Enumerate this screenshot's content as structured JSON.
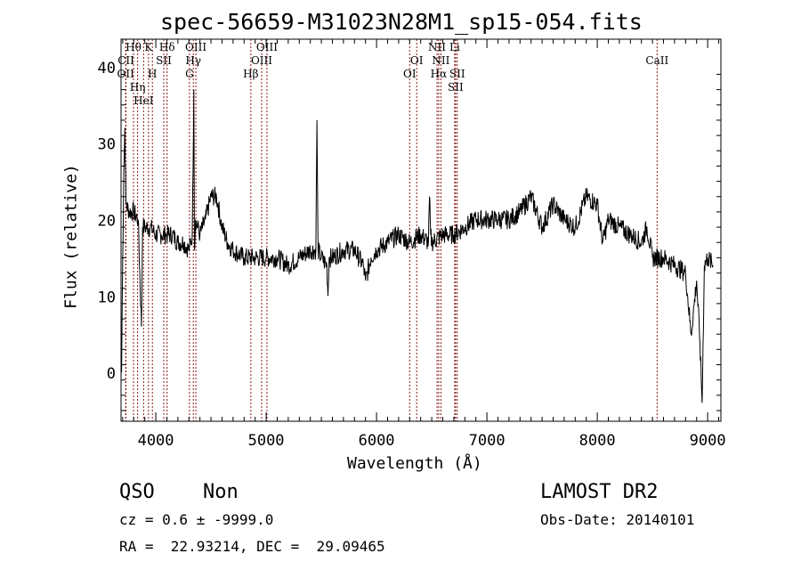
{
  "chart_data": {
    "type": "line",
    "title": "spec-56659-M31023N28M1_sp15-054.fits",
    "xlabel": "Wavelength (Å)",
    "ylabel": "Flux (relative)",
    "xlim": [
      3685,
      9120
    ],
    "ylim": [
      -6.4,
      43.6
    ],
    "xticks": [
      4000,
      5000,
      6000,
      7000,
      8000,
      9000
    ],
    "yticks": [
      0,
      10,
      20,
      30,
      40
    ],
    "series": [
      {
        "name": "spectrum",
        "x": [
          3690,
          3700,
          3710,
          3720,
          3730,
          3760,
          3800,
          3840,
          3870,
          3880,
          3900,
          3950,
          4000,
          4050,
          4100,
          4150,
          4200,
          4250,
          4300,
          4330,
          4345,
          4350,
          4360,
          4400,
          4450,
          4500,
          4550,
          4600,
          4650,
          4700,
          4800,
          4900,
          5000,
          5100,
          5200,
          5300,
          5400,
          5450,
          5460,
          5470,
          5500,
          5550,
          5560,
          5570,
          5600,
          5700,
          5800,
          5880,
          5900,
          5950,
          6000,
          6100,
          6200,
          6300,
          6400,
          6470,
          6480,
          6490,
          6500,
          6600,
          6700,
          6800,
          6900,
          7000,
          7100,
          7200,
          7300,
          7400,
          7500,
          7600,
          7700,
          7800,
          7900,
          8000,
          8050,
          8100,
          8200,
          8300,
          8400,
          8450,
          8500,
          8600,
          8700,
          8800,
          8850,
          8900,
          8930,
          8950,
          8970,
          9000,
          9050
        ],
        "y": [
          0,
          15,
          26,
          32,
          22,
          21,
          21,
          20,
          6,
          19,
          19,
          19,
          18,
          18,
          18,
          18,
          17,
          17,
          16,
          18,
          37,
          16,
          20,
          18,
          20,
          23,
          23,
          19,
          17,
          16,
          15,
          15,
          15,
          15,
          14,
          15,
          16,
          16,
          33,
          16,
          15,
          14,
          10,
          15,
          15,
          16,
          16,
          14,
          12,
          15,
          16,
          17,
          18,
          17,
          18,
          17,
          23,
          18,
          17,
          18,
          18,
          19,
          20,
          20,
          20,
          20,
          21,
          23,
          19,
          22,
          20,
          19,
          23,
          22,
          17,
          20,
          19,
          18,
          17,
          19,
          15,
          15,
          14,
          13,
          5,
          12,
          4,
          -4,
          14,
          15,
          14
        ]
      }
    ],
    "lines": [
      {
        "label": "OII",
        "x": 3727,
        "row": 3
      },
      {
        "label": "CII",
        "x": 3730,
        "row": 2
      },
      {
        "label": "Hθ",
        "x": 3798,
        "row": 1
      },
      {
        "label": "Hη",
        "x": 3835,
        "row": 3
      },
      {
        "label": "HeI",
        "x": 3889,
        "row": 2
      },
      {
        "label": "K",
        "x": 3934,
        "row": 1
      },
      {
        "label": "H",
        "x": 3969,
        "row": 3
      },
      {
        "label": "SII",
        "x": 4072,
        "row": 2
      },
      {
        "label": "Hδ",
        "x": 4102,
        "row": 1
      },
      {
        "label": "G",
        "x": 4305,
        "row": 3
      },
      {
        "label": "Hγ",
        "x": 4340,
        "row": 2
      },
      {
        "label": "OIII",
        "x": 4363,
        "row": 1
      },
      {
        "label": "Hβ",
        "x": 4861,
        "row": 3
      },
      {
        "label": "OIII",
        "x": 4959,
        "row": 2
      },
      {
        "label": "OIII",
        "x": 5007,
        "row": 1
      },
      {
        "label": "OI",
        "x": 6300,
        "row": 3
      },
      {
        "label": "OI",
        "x": 6364,
        "row": 2
      },
      {
        "label": "NII",
        "x": 6548,
        "row": 1
      },
      {
        "label": "Hα",
        "x": 6563,
        "row": 3
      },
      {
        "label": "NII",
        "x": 6583,
        "row": 2
      },
      {
        "label": "Li",
        "x": 6708,
        "row": 1
      },
      {
        "label": "SII",
        "x": 6716,
        "row": 3
      },
      {
        "label": "SII",
        "x": 6731,
        "row": 3
      },
      {
        "label": "CaII",
        "x": 8542,
        "row": 2
      }
    ],
    "line_color": "#8b1a1a"
  },
  "info": {
    "cls": "QSO",
    "subclass": "Non",
    "cz": "cz = 0.6 ± -9999.0",
    "radec": "RA =  22.93214, DEC =  29.09465",
    "survey": "LAMOST DR2",
    "obsdate": "Obs-Date: 20140101"
  }
}
